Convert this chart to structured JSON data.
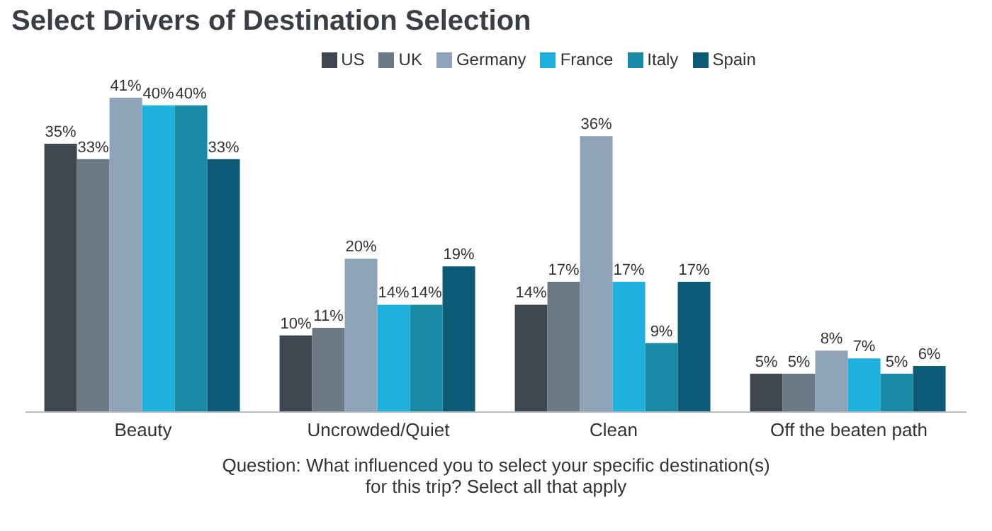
{
  "chart_data": {
    "type": "bar",
    "title": "Select Drivers of Destination Selection",
    "categories": [
      "Beauty",
      "Uncrowded/Quiet",
      "Clean",
      "Off the beaten path"
    ],
    "series": [
      {
        "name": "US",
        "color": "#3e4650",
        "values": [
          35,
          10,
          14,
          5
        ],
        "value_labels": [
          "35%",
          "10%",
          "14%",
          "5%"
        ]
      },
      {
        "name": "UK",
        "color": "#6c7a88",
        "values": [
          33,
          11,
          17,
          5
        ],
        "value_labels": [
          "33%",
          "11%",
          "17%",
          "5%"
        ]
      },
      {
        "name": "Germany",
        "color": "#8ea2b8",
        "values": [
          41,
          20,
          36,
          8
        ],
        "value_labels": [
          "41%",
          "20%",
          "36%",
          "8%"
        ]
      },
      {
        "name": "France",
        "color": "#1fb1dd",
        "values": [
          40,
          14,
          17,
          7
        ],
        "value_labels": [
          "40%",
          "14%",
          "17%",
          "7%"
        ]
      },
      {
        "name": "Italy",
        "color": "#1a8ba6",
        "values": [
          40,
          14,
          9,
          5
        ],
        "value_labels": [
          "40%",
          "14%",
          "9%",
          "5%"
        ]
      },
      {
        "name": "Spain",
        "color": "#0e5b78",
        "values": [
          33,
          19,
          17,
          6
        ],
        "value_labels": [
          "33%",
          "19%",
          "17%",
          "6%"
        ]
      }
    ],
    "legend": "top",
    "grid": false,
    "annotations": [
      "Question: What influenced you to select your specific destination(s) for this trip? Select all that apply"
    ]
  }
}
